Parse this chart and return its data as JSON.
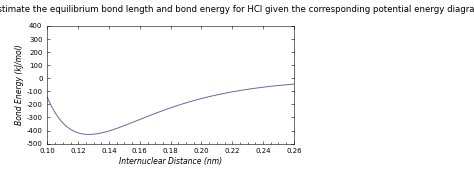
{
  "title": "Estimate the equilibrium bond length and bond energy for HCl given the corresponding potential energy diagram",
  "xlabel": "Internuclear Distance (nm)",
  "ylabel": "Bond Energy (kJ/mol)",
  "xlim": [
    0.1,
    0.26
  ],
  "ylim": [
    -500,
    400
  ],
  "xticks": [
    0.1,
    0.12,
    0.14,
    0.16,
    0.18,
    0.2,
    0.22,
    0.24,
    0.26
  ],
  "yticks": [
    -500,
    -400,
    -300,
    -200,
    -100,
    0,
    100,
    200,
    300,
    400
  ],
  "line_color": "#6666aa",
  "background_color": "#ffffff",
  "r_eq": 0.127,
  "D_e": 430,
  "morse_a": 22.0,
  "title_fontsize": 6.2,
  "axis_label_fontsize": 5.5,
  "tick_fontsize": 5.0
}
